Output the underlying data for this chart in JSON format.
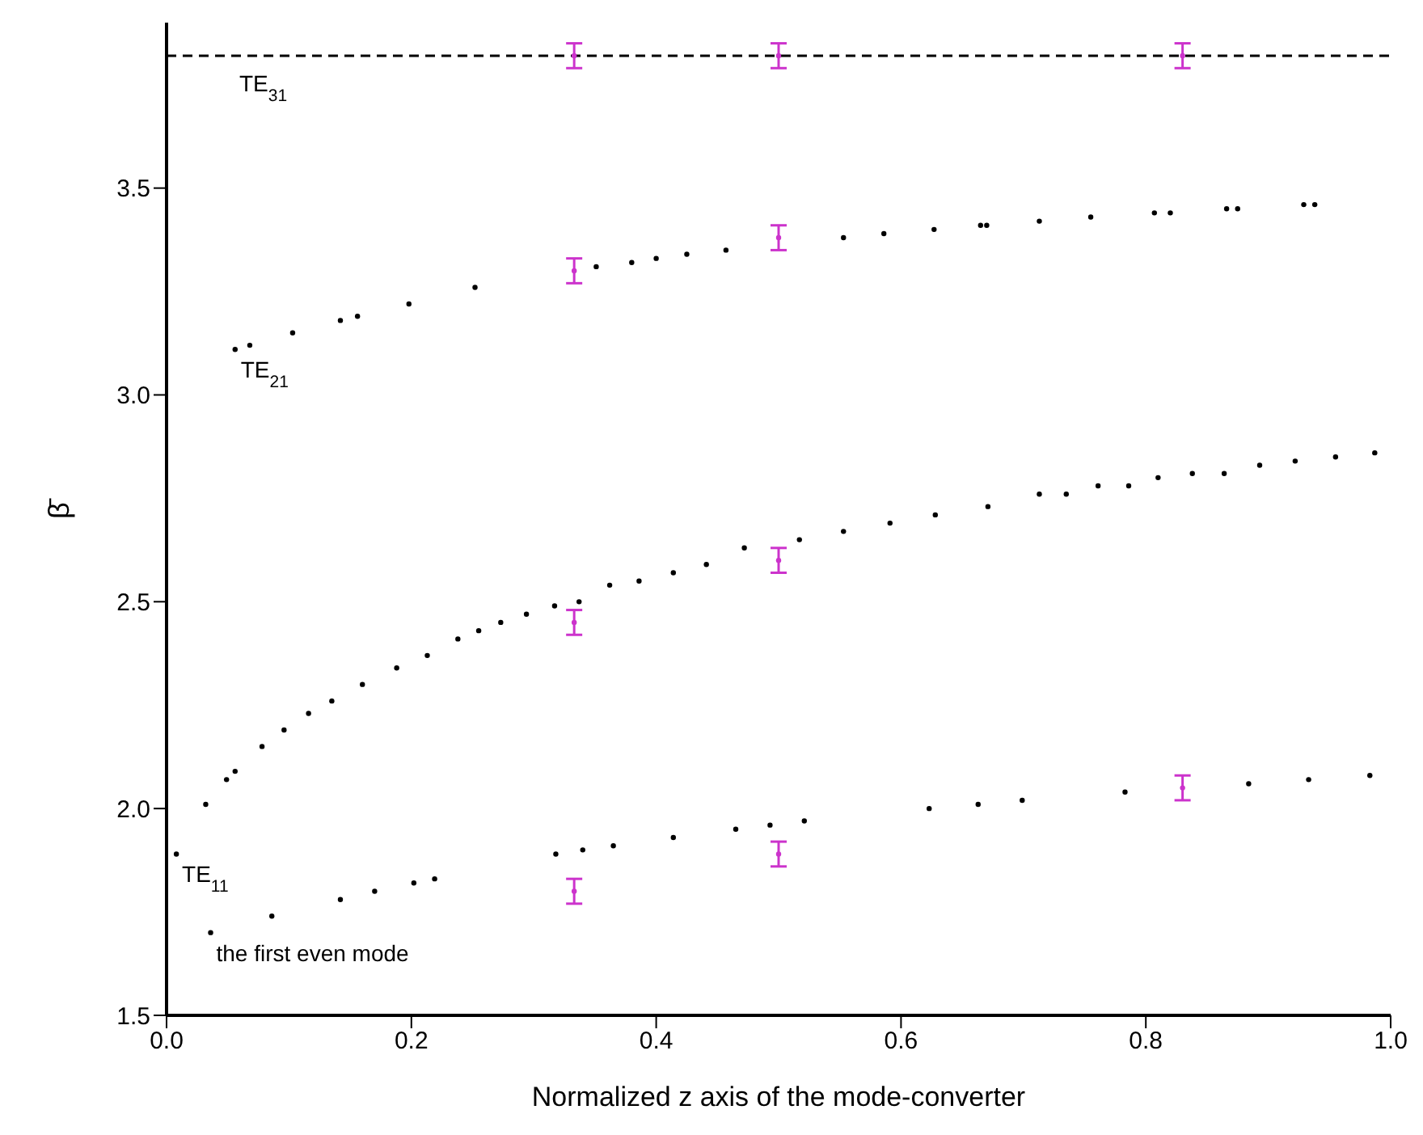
{
  "chart_data": {
    "type": "scatter",
    "xlabel": "Normalized z axis of the mode-converter",
    "ylabel": "β̄",
    "xlim": [
      0,
      1
    ],
    "xticks": [
      {
        "value": 0,
        "label": "0.0"
      },
      0.2,
      0.4,
      0.6,
      0.8,
      {
        "value": 1,
        "label": "1.0"
      }
    ],
    "ylim": [
      1.5,
      3.9
    ],
    "yticks": [
      1.5,
      {
        "value": 2,
        "label": "2.0"
      },
      2.5,
      {
        "value": 3,
        "label": "3.0"
      },
      3.5
    ],
    "grid": false,
    "legend": false,
    "marker": "circle",
    "series": [
      {
        "name": "TE$_{31}$",
        "type": "line",
        "line_style": "dashed",
        "marker": "none",
        "color": "#000000",
        "x": [
          0,
          1
        ],
        "values": [
          3.82,
          3.82
        ]
      },
      {
        "name": "TE$_{21}$",
        "color": "#000000",
        "x": [
          0.056,
          0.068,
          0.103,
          0.142,
          0.156,
          0.198,
          0.252,
          0.351,
          0.38,
          0.4,
          0.425,
          0.457,
          0.553,
          0.586,
          0.627,
          0.665,
          0.67,
          0.713,
          0.755,
          0.807,
          0.82,
          0.866,
          0.875,
          0.929,
          0.938
        ],
        "values": [
          3.11,
          3.12,
          3.15,
          3.18,
          3.19,
          3.22,
          3.26,
          3.31,
          3.32,
          3.33,
          3.34,
          3.35,
          3.38,
          3.39,
          3.4,
          3.41,
          3.41,
          3.42,
          3.43,
          3.44,
          3.44,
          3.45,
          3.45,
          3.46,
          3.46
        ]
      },
      {
        "name": "TE$_{11}$",
        "color": "#000000",
        "x": [
          0.008,
          0.032,
          0.049,
          0.056,
          0.078,
          0.096,
          0.116,
          0.135,
          0.16,
          0.188,
          0.213,
          0.238,
          0.255,
          0.273,
          0.294,
          0.317,
          0.337,
          0.362,
          0.386,
          0.414,
          0.441,
          0.472,
          0.517,
          0.553,
          0.591,
          0.628,
          0.671,
          0.713,
          0.735,
          0.761,
          0.786,
          0.81,
          0.838,
          0.864,
          0.893,
          0.922,
          0.955,
          0.987
        ],
        "values": [
          1.89,
          2.01,
          2.07,
          2.09,
          2.15,
          2.19,
          2.23,
          2.26,
          2.3,
          2.34,
          2.37,
          2.41,
          2.43,
          2.45,
          2.47,
          2.49,
          2.5,
          2.54,
          2.55,
          2.57,
          2.59,
          2.63,
          2.65,
          2.67,
          2.69,
          2.71,
          2.73,
          2.76,
          2.76,
          2.78,
          2.78,
          2.8,
          2.81,
          2.81,
          2.83,
          2.84,
          2.85,
          2.86
        ]
      },
      {
        "name": "the first even mode",
        "color": "#000000",
        "x": [
          0.036,
          0.086,
          0.142,
          0.17,
          0.202,
          0.219,
          0.318,
          0.34,
          0.365,
          0.414,
          0.465,
          0.493,
          0.521,
          0.623,
          0.663,
          0.699,
          0.783,
          0.884,
          0.933,
          0.983
        ],
        "values": [
          1.7,
          1.74,
          1.78,
          1.8,
          1.82,
          1.83,
          1.89,
          1.9,
          1.91,
          1.93,
          1.95,
          1.96,
          1.97,
          2.0,
          2.01,
          2.02,
          2.04,
          2.06,
          2.07,
          2.08
        ]
      },
      {
        "color": "#cc33cc",
        "x": [
          0.333,
          0.333,
          0.333,
          0.333,
          0.5,
          0.5,
          0.5,
          0.5,
          0.83,
          0.83
        ],
        "values": [
          3.82,
          3.3,
          2.45,
          1.8,
          3.82,
          3.38,
          2.6,
          1.89,
          3.82,
          2.05
        ],
        "errors": [
          0.03,
          0.03,
          0.03,
          0.03,
          0.03,
          0.03,
          0.03,
          0.03,
          0.03,
          0.03
        ]
      }
    ]
  }
}
